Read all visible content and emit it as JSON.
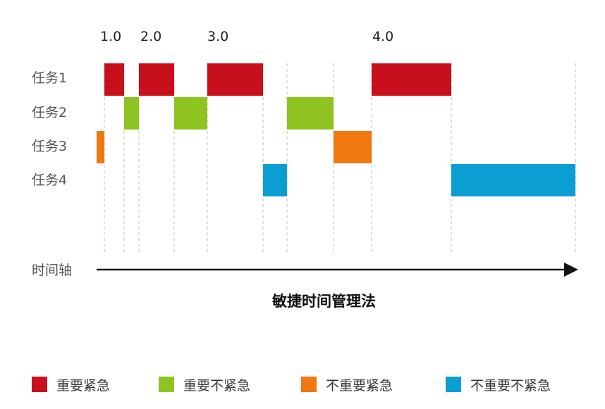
{
  "title": "敏捷时间管理法",
  "axis_label": "时间轴",
  "versions": [
    "1.0",
    "2.0",
    "3.0",
    "4.0"
  ],
  "rows": [
    "任务1",
    "任务2",
    "任务3",
    "任务4"
  ],
  "categories": [
    {
      "label": "重要紧急",
      "color": "#c8101c"
    },
    {
      "label": "重要不紧急",
      "color": "#8fc31f"
    },
    {
      "label": "不重要紧急",
      "color": "#f07810"
    },
    {
      "label": "不重要不紧急",
      "color": "#0a9ed2"
    }
  ]
}
